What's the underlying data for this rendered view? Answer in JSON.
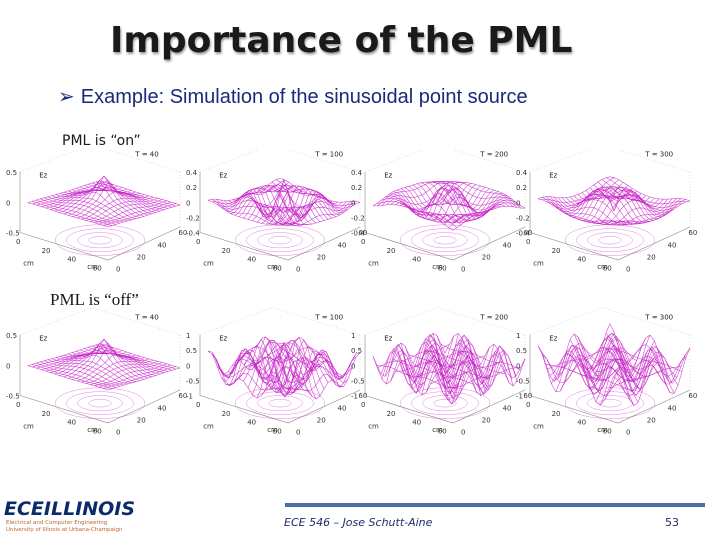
{
  "slide": {
    "title": "Importance of the PML",
    "bullet_prefix": "Example",
    "bullet_rest": ": Simulation of the sinusoidal point source",
    "label_on": "PML is “on”",
    "label_off": "PML is “off”",
    "footer": "ECE 546 – Jose Schutt-Aine",
    "page_number": "53"
  },
  "logo": {
    "main_ece": "ECE",
    "main_illinois": "ILLINOIS",
    "sub_line1": "Electrical and Computer Engineering",
    "sub_line2": "University of Illinois at Urbana-Champaign"
  },
  "colors": {
    "title": "#1a1a1a",
    "bullet": "#1a2a7a",
    "mesh": "#c61fc6",
    "footer_bar": "#4a6fa0",
    "logo": "#0c2a6b"
  },
  "plots_on": [
    {
      "time_label": "T = 40",
      "z_label": "Ez",
      "z_ticks": [
        "0.5",
        "0",
        "-0.5"
      ]
    },
    {
      "time_label": "T = 100",
      "z_label": "Ez",
      "z_ticks": [
        "0.4",
        "0.2",
        "0",
        "-0.2",
        "-0.4"
      ]
    },
    {
      "time_label": "T = 200",
      "z_label": "Ez",
      "z_ticks": [
        "0.4",
        "0.2",
        "0",
        "-0.2",
        "-0.4"
      ]
    },
    {
      "time_label": "T = 300",
      "z_label": "Ez",
      "z_ticks": [
        "0.4",
        "0.2",
        "0",
        "-0.2",
        "-0.4"
      ]
    }
  ],
  "plots_off": [
    {
      "time_label": "T = 40",
      "z_label": "Ez",
      "z_ticks": [
        "0.5",
        "0",
        "-0.5"
      ]
    },
    {
      "time_label": "T = 100",
      "z_label": "Ez",
      "z_ticks": [
        "1",
        "0.5",
        "0",
        "-0.5",
        "-1"
      ]
    },
    {
      "time_label": "T = 200",
      "z_label": "Ez",
      "z_ticks": [
        "1",
        "0.5",
        "0",
        "-0.5",
        "-1"
      ]
    },
    {
      "time_label": "T = 300",
      "z_label": "Ez",
      "z_ticks": [
        "1",
        "0.5",
        "0",
        "-0.5",
        "-1"
      ]
    }
  ],
  "axis_unit": "cm",
  "axis_ticks": [
    "0",
    "20",
    "40",
    "60"
  ]
}
